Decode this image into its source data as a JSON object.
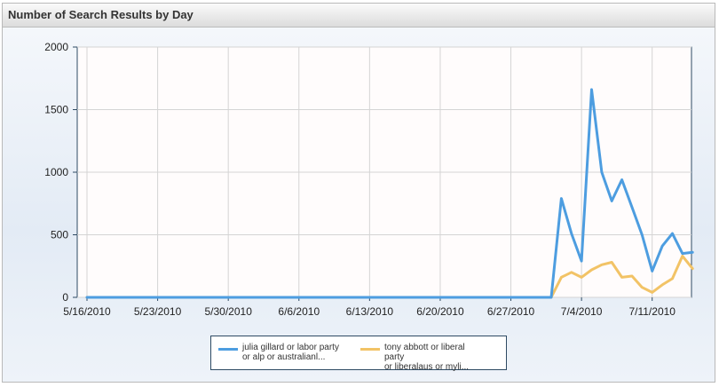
{
  "header": {
    "title": "Number of Search Results by Day"
  },
  "chart_data": {
    "type": "line",
    "title": "Number of Search Results by Day",
    "xlabel": "",
    "ylabel": "",
    "ylim": [
      0,
      2000
    ],
    "yticks": [
      "2000",
      "1500",
      "1000",
      "500",
      "0"
    ],
    "xticks": [
      {
        "day": 0,
        "label": "5/16/2010"
      },
      {
        "day": 7,
        "label": "5/23/2010"
      },
      {
        "day": 14,
        "label": "5/30/2010"
      },
      {
        "day": 21,
        "label": "6/6/2010"
      },
      {
        "day": 28,
        "label": "6/13/2010"
      },
      {
        "day": 35,
        "label": "6/20/2010"
      },
      {
        "day": 42,
        "label": "6/27/2010"
      },
      {
        "day": 49,
        "label": "7/4/2010"
      },
      {
        "day": 56,
        "label": "7/11/2010"
      }
    ],
    "grid": true,
    "legend_position": "bottom-center",
    "series": [
      {
        "name": "julia gillard or labor party or alp or australianl...",
        "color": "#4d9de0",
        "values": [
          0,
          0,
          0,
          0,
          0,
          0,
          0,
          0,
          0,
          0,
          0,
          0,
          0,
          0,
          0,
          0,
          0,
          0,
          0,
          0,
          0,
          0,
          0,
          0,
          0,
          0,
          0,
          0,
          0,
          0,
          0,
          0,
          0,
          0,
          0,
          0,
          0,
          0,
          0,
          0,
          0,
          0,
          0,
          0,
          0,
          0,
          0,
          790,
          510,
          290,
          1660,
          1000,
          770,
          940,
          720,
          500,
          210,
          410,
          510,
          350,
          360
        ]
      },
      {
        "name": "tony abbott or liberal party or liberalaus or myli...",
        "color": "#f2c366",
        "values": [
          0,
          0,
          0,
          0,
          0,
          0,
          0,
          0,
          0,
          0,
          0,
          0,
          0,
          0,
          0,
          0,
          0,
          0,
          0,
          0,
          0,
          0,
          0,
          0,
          0,
          0,
          0,
          0,
          0,
          0,
          0,
          0,
          0,
          0,
          0,
          0,
          0,
          0,
          0,
          0,
          0,
          0,
          0,
          0,
          0,
          0,
          0,
          160,
          200,
          160,
          220,
          260,
          280,
          160,
          170,
          80,
          40,
          100,
          150,
          330,
          230
        ]
      }
    ]
  },
  "legend": {
    "items": [
      {
        "line1": "julia gillard or labor party",
        "line2": "or alp or australianl...",
        "color": "#4d9de0"
      },
      {
        "line1": "tony abbott or liberal party",
        "line2": "or liberalaus or myli...",
        "color": "#f2c366"
      }
    ]
  }
}
